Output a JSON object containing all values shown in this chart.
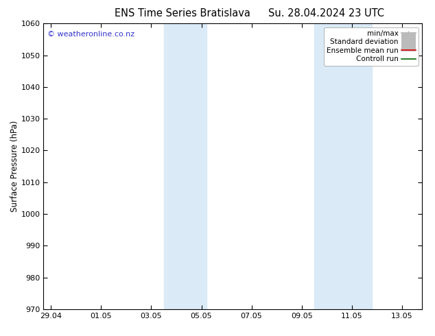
{
  "title_left": "ENS Time Series Bratislava",
  "title_right": "Su. 28.04.2024 23 UTC",
  "ylabel": "Surface Pressure (hPa)",
  "ylim": [
    970,
    1060
  ],
  "yticks": [
    970,
    980,
    990,
    1000,
    1010,
    1020,
    1030,
    1040,
    1050,
    1060
  ],
  "xtick_labels": [
    "29.04",
    "01.05",
    "03.05",
    "05.05",
    "07.05",
    "09.05",
    "11.05",
    "13.05"
  ],
  "xtick_positions": [
    0,
    2,
    4,
    6,
    8,
    10,
    12,
    14
  ],
  "xlim": [
    -0.3,
    14.8
  ],
  "shade_bands": [
    {
      "x_start": 4.5,
      "x_end": 6.2,
      "color": "#daeaf7"
    },
    {
      "x_start": 10.5,
      "x_end": 12.8,
      "color": "#daeaf7"
    }
  ],
  "legend_items": [
    {
      "label": "min/max",
      "color": "#aaaaaa",
      "lw": 1.2,
      "style": "line_with_cap"
    },
    {
      "label": "Standard deviation",
      "color": "#bbbbbb",
      "lw": 5,
      "style": "thick"
    },
    {
      "label": "Ensemble mean run",
      "color": "#dd0000",
      "lw": 1.2,
      "style": "line"
    },
    {
      "label": "Controll run",
      "color": "#006600",
      "lw": 1.2,
      "style": "line"
    }
  ],
  "watermark": "© weatheronline.co.nz",
  "watermark_color": "#3333cc",
  "bg_color": "#ffffff",
  "plot_bg_color": "#ffffff",
  "title_fontsize": 10.5,
  "axis_fontsize": 8.5,
  "tick_fontsize": 8,
  "legend_fontsize": 7.5
}
